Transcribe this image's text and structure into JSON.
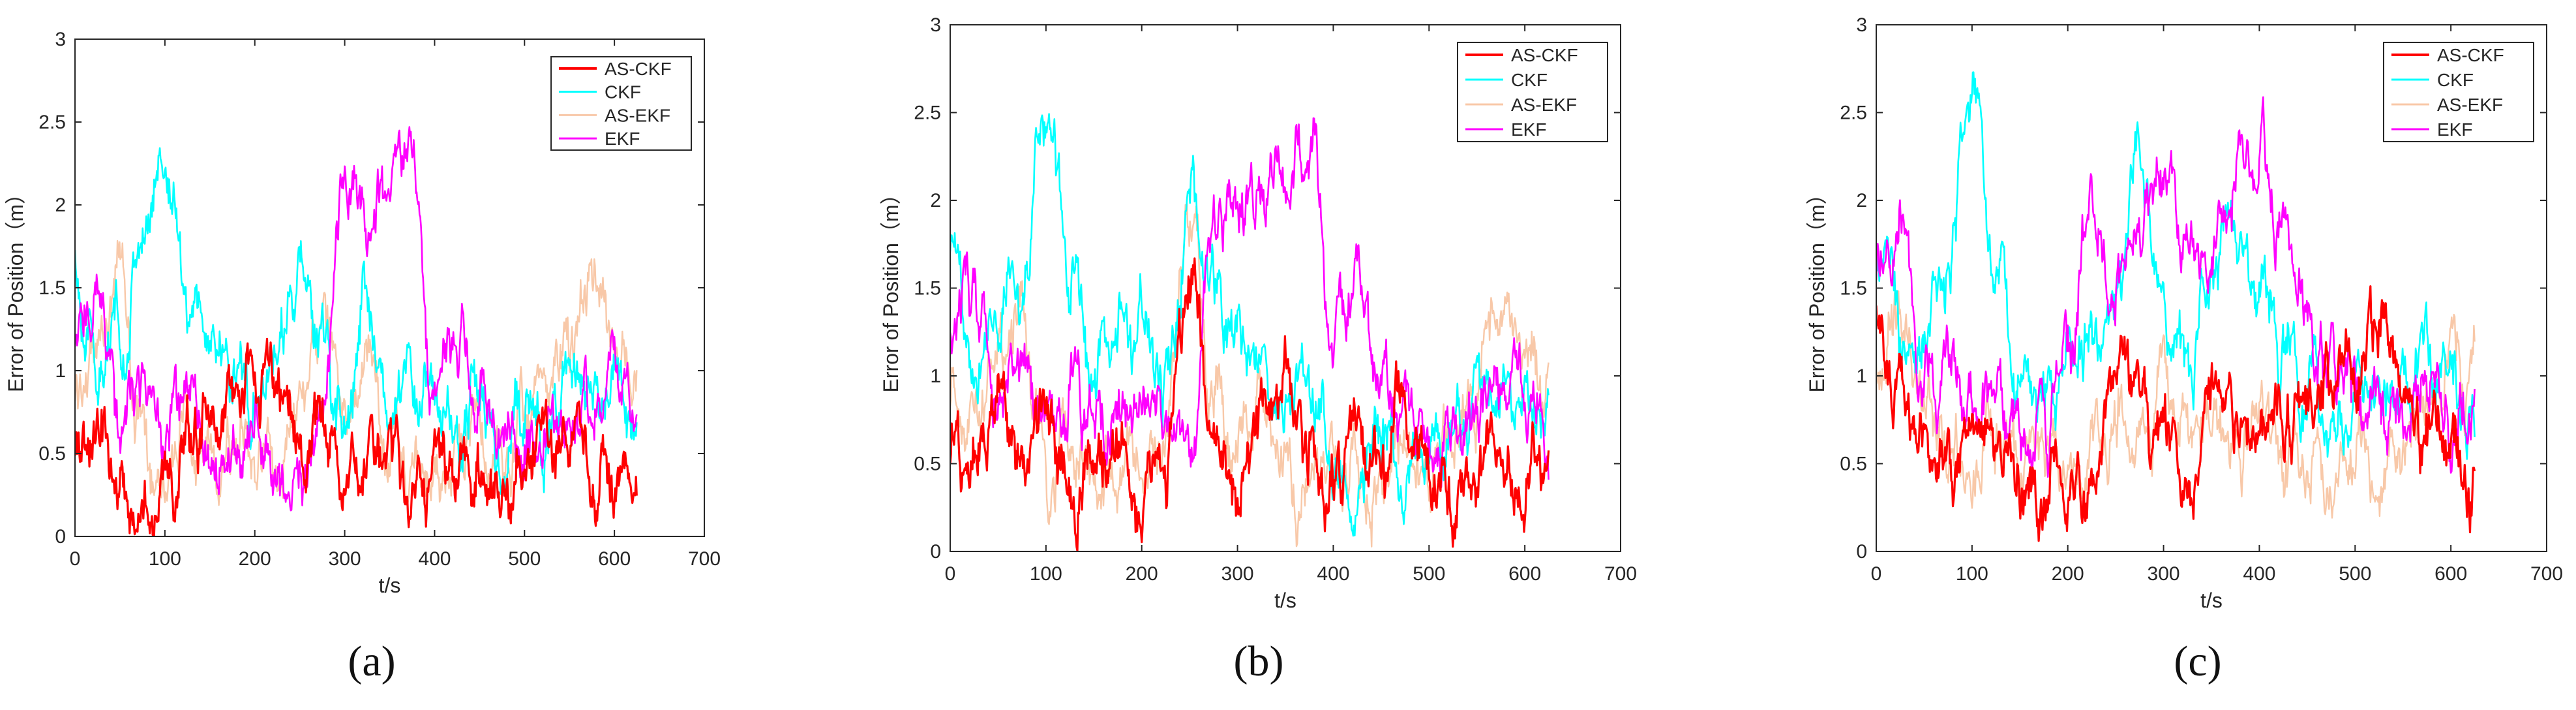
{
  "figure": {
    "captions": [
      "(a)",
      "(b)",
      "(c)"
    ],
    "caption_letters": [
      "a",
      "b",
      "c"
    ]
  },
  "colors": {
    "AS-CKF": "#ff0000",
    "CKF": "#00ffff",
    "AS-EKF": "#f8c8a8",
    "EKF": "#ff00ff",
    "axis": "#262626",
    "background": "#ffffff"
  },
  "chart_data": [
    {
      "type": "line",
      "panel": "a",
      "xlabel": "t/s",
      "ylabel": "Error of Position（m）",
      "xlim": [
        0,
        700
      ],
      "ylim": [
        0,
        3
      ],
      "xticks": [
        "0",
        "100",
        "200",
        "300",
        "400",
        "500",
        "600",
        "700"
      ],
      "yticks": [
        "0",
        "0.5",
        "1",
        "1.5",
        "2",
        "2.5",
        "3"
      ],
      "legend": {
        "position": "top-right",
        "entries": [
          "AS-CKF",
          "CKF",
          "AS-EKF",
          "EKF"
        ]
      },
      "grid": false,
      "series": [
        {
          "name": "AS-CKF",
          "x": [
            0,
            25,
            50,
            75,
            100,
            125,
            150,
            175,
            200,
            225,
            250,
            275,
            300,
            325,
            350,
            375,
            400,
            425,
            450,
            475,
            500,
            525,
            550,
            575,
            600,
            625
          ],
          "y": [
            0.5,
            0.6,
            0.3,
            0.15,
            0.35,
            0.55,
            0.7,
            0.8,
            0.9,
            1.0,
            0.5,
            0.8,
            0.2,
            0.45,
            0.5,
            0.3,
            0.45,
            0.4,
            0.35,
            0.25,
            0.45,
            0.5,
            0.6,
            0.5,
            0.3,
            0.25
          ]
        },
        {
          "name": "CKF",
          "x": [
            0,
            25,
            50,
            75,
            100,
            125,
            150,
            175,
            200,
            225,
            250,
            275,
            300,
            325,
            350,
            375,
            400,
            425,
            450,
            475,
            500,
            525,
            550,
            575,
            600,
            625
          ],
          "y": [
            1.6,
            1.0,
            1.2,
            1.8,
            2.3,
            1.5,
            1.2,
            1.0,
            0.9,
            1.1,
            1.6,
            1.1,
            0.7,
            1.4,
            0.7,
            1.0,
            0.8,
            0.6,
            0.9,
            0.4,
            0.8,
            0.6,
            1.0,
            0.8,
            1.0,
            0.6
          ]
        },
        {
          "name": "AS-EKF",
          "x": [
            0,
            25,
            50,
            75,
            100,
            125,
            150,
            175,
            200,
            225,
            250,
            275,
            300,
            325,
            350,
            375,
            400,
            425,
            450,
            475,
            500,
            525,
            550,
            575,
            600,
            625
          ],
          "y": [
            0.8,
            1.2,
            1.6,
            0.6,
            0.4,
            0.7,
            0.4,
            0.6,
            0.5,
            0.4,
            0.9,
            1.2,
            0.8,
            1.0,
            0.6,
            0.4,
            0.3,
            0.5,
            0.6,
            0.4,
            0.7,
            0.9,
            1.2,
            1.7,
            1.1,
            1.1
          ]
        },
        {
          "name": "EKF",
          "x": [
            0,
            25,
            50,
            75,
            100,
            125,
            150,
            175,
            200,
            225,
            250,
            275,
            300,
            325,
            350,
            375,
            400,
            425,
            450,
            475,
            500,
            525,
            550,
            575,
            600,
            625
          ],
          "y": [
            1.2,
            1.5,
            0.7,
            0.9,
            0.6,
            0.8,
            0.4,
            0.5,
            0.7,
            0.4,
            0.3,
            0.8,
            2.1,
            2.0,
            2.1,
            2.4,
            0.8,
            1.2,
            0.9,
            0.6,
            0.5,
            0.6,
            0.7,
            0.8,
            1.0,
            0.7
          ]
        }
      ]
    },
    {
      "type": "line",
      "panel": "b",
      "xlabel": "t/s",
      "ylabel": "Error of Position（m）",
      "xlim": [
        0,
        700
      ],
      "ylim": [
        0,
        3
      ],
      "xticks": [
        "0",
        "100",
        "200",
        "300",
        "400",
        "500",
        "600",
        "700"
      ],
      "yticks": [
        "0",
        "0.5",
        "1",
        "1.5",
        "2",
        "2.5",
        "3"
      ],
      "legend": {
        "position": "top-right",
        "entries": [
          "AS-CKF",
          "CKF",
          "AS-EKF",
          "EKF"
        ]
      },
      "grid": false,
      "series": [
        {
          "name": "AS-CKF",
          "x": [
            0,
            25,
            50,
            75,
            100,
            125,
            150,
            175,
            200,
            225,
            250,
            275,
            300,
            325,
            350,
            375,
            400,
            425,
            450,
            475,
            500,
            525,
            550,
            575,
            600,
            625
          ],
          "y": [
            0.6,
            0.5,
            0.9,
            0.4,
            0.7,
            0.3,
            0.6,
            0.5,
            0.3,
            0.6,
            1.5,
            0.6,
            0.4,
            0.8,
            0.9,
            0.5,
            0.4,
            0.6,
            0.5,
            0.9,
            0.5,
            0.3,
            0.4,
            0.3,
            0.4,
            0.4
          ]
        },
        {
          "name": "CKF",
          "x": [
            0,
            25,
            50,
            75,
            100,
            125,
            150,
            175,
            200,
            225,
            250,
            275,
            300,
            325,
            350,
            375,
            400,
            425,
            450,
            475,
            500,
            525,
            550,
            575,
            600,
            625
          ],
          "y": [
            1.8,
            1.2,
            1.4,
            1.6,
            2.5,
            1.6,
            1.0,
            1.2,
            1.3,
            0.9,
            2.0,
            1.4,
            1.2,
            1.0,
            0.8,
            1.0,
            0.6,
            0.4,
            0.6,
            0.4,
            0.5,
            0.6,
            0.8,
            1.0,
            0.9,
            0.7
          ]
        },
        {
          "name": "AS-EKF",
          "x": [
            0,
            25,
            50,
            75,
            100,
            125,
            150,
            175,
            200,
            225,
            250,
            275,
            300,
            325,
            350,
            375,
            400,
            425,
            450,
            475,
            500,
            525,
            550,
            575,
            600,
            625
          ],
          "y": [
            0.9,
            0.8,
            1.2,
            1.3,
            0.4,
            0.6,
            0.3,
            0.5,
            0.4,
            0.6,
            2.0,
            0.9,
            0.6,
            0.8,
            0.5,
            0.3,
            0.4,
            0.5,
            0.3,
            0.6,
            0.4,
            0.7,
            0.9,
            1.4,
            1.1,
            1.0
          ]
        },
        {
          "name": "EKF",
          "x": [
            0,
            25,
            50,
            75,
            100,
            125,
            150,
            175,
            200,
            225,
            250,
            275,
            300,
            325,
            350,
            375,
            400,
            425,
            450,
            475,
            500,
            525,
            550,
            575,
            600,
            625
          ],
          "y": [
            1.4,
            1.5,
            0.8,
            1.0,
            0.8,
            0.9,
            0.7,
            0.8,
            0.9,
            0.6,
            0.5,
            1.8,
            2.1,
            2.0,
            2.2,
            2.4,
            1.2,
            1.5,
            1.0,
            0.8,
            0.6,
            0.7,
            0.8,
            0.9,
            1.0,
            0.7
          ]
        }
      ]
    },
    {
      "type": "line",
      "panel": "c",
      "xlabel": "t/s",
      "ylabel": "Error of Position（m）",
      "xlim": [
        0,
        700
      ],
      "ylim": [
        0,
        3
      ],
      "xticks": [
        "0",
        "100",
        "200",
        "300",
        "400",
        "500",
        "600",
        "700"
      ],
      "yticks": [
        "0",
        "0.5",
        "1",
        "1.5",
        "2",
        "2.5",
        "3"
      ],
      "legend": {
        "position": "top-right",
        "entries": [
          "AS-CKF",
          "CKF",
          "AS-EKF",
          "EKF"
        ]
      },
      "grid": false,
      "series": [
        {
          "name": "AS-CKF",
          "x": [
            0,
            25,
            50,
            75,
            100,
            125,
            150,
            175,
            200,
            225,
            250,
            275,
            300,
            325,
            350,
            375,
            400,
            425,
            450,
            475,
            500,
            525,
            550,
            575,
            600,
            625
          ],
          "y": [
            1.3,
            0.8,
            0.6,
            0.5,
            0.8,
            0.6,
            0.4,
            0.3,
            0.5,
            0.3,
            0.9,
            1.0,
            0.6,
            0.4,
            0.8,
            0.6,
            0.7,
            0.9,
            0.8,
            1.0,
            1.0,
            1.4,
            0.9,
            0.7,
            0.5,
            0.3
          ]
        },
        {
          "name": "CKF",
          "x": [
            0,
            25,
            50,
            75,
            100,
            125,
            150,
            175,
            200,
            225,
            250,
            275,
            300,
            325,
            350,
            375,
            400,
            425,
            450,
            475,
            500,
            525,
            550,
            575,
            600,
            625
          ],
          "y": [
            1.8,
            1.2,
            1.3,
            1.6,
            2.5,
            1.6,
            1.0,
            0.8,
            1.0,
            1.2,
            1.4,
            2.3,
            1.3,
            1.1,
            1.6,
            1.8,
            1.5,
            1.2,
            0.9,
            0.7,
            0.8,
            0.9,
            1.0,
            1.1,
            1.0,
            0.7
          ]
        },
        {
          "name": "AS-EKF",
          "x": [
            0,
            25,
            50,
            75,
            100,
            125,
            150,
            175,
            200,
            225,
            250,
            275,
            300,
            325,
            350,
            375,
            400,
            425,
            450,
            475,
            500,
            525,
            550,
            575,
            600,
            625
          ],
          "y": [
            1.0,
            1.3,
            0.8,
            0.6,
            0.5,
            0.7,
            0.5,
            0.6,
            0.4,
            0.6,
            0.8,
            0.6,
            0.9,
            0.7,
            0.8,
            0.6,
            0.7,
            0.5,
            0.6,
            0.4,
            0.6,
            0.5,
            0.7,
            0.8,
            1.1,
            0.9
          ]
        },
        {
          "name": "EKF",
          "x": [
            0,
            25,
            50,
            75,
            100,
            125,
            150,
            175,
            200,
            225,
            250,
            275,
            300,
            325,
            350,
            375,
            400,
            425,
            450,
            475,
            500,
            525,
            550,
            575,
            600,
            625
          ],
          "y": [
            1.6,
            1.9,
            1.0,
            1.1,
            0.8,
            1.0,
            0.7,
            0.8,
            1.2,
            2.0,
            1.6,
            1.9,
            2.1,
            1.8,
            1.5,
            2.2,
            2.3,
            1.9,
            1.4,
            1.1,
            0.9,
            0.8,
            0.7,
            0.9,
            0.9,
            0.8
          ]
        }
      ]
    }
  ]
}
